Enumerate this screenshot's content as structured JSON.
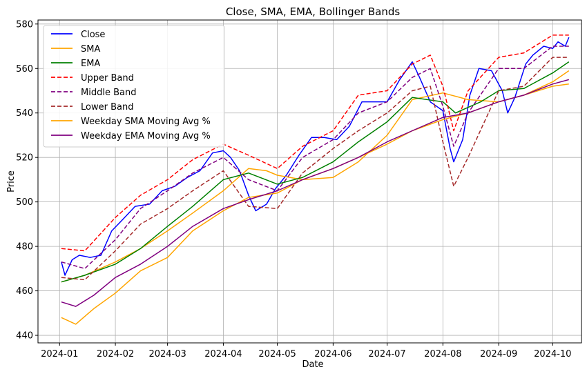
{
  "chart_data": {
    "type": "line",
    "title": "Close, SMA, EMA, Bollinger Bands",
    "xlabel": "Date",
    "ylabel": "Price",
    "x_ticks": [
      "2024-01",
      "2024-02",
      "2024-03",
      "2024-04",
      "2024-05",
      "2024-06",
      "2024-07",
      "2024-08",
      "2024-09",
      "2024-10"
    ],
    "y_ticks": [
      440,
      460,
      480,
      500,
      520,
      540,
      560,
      580
    ],
    "xlim": [
      "2023-12-20",
      "2024-10-17"
    ],
    "ylim": [
      436.6,
      581.8
    ],
    "grid": true,
    "legend_position": "upper-left",
    "series": [
      {
        "name": "Close",
        "color": "#0000ff",
        "style": "solid",
        "points": [
          [
            "2024-01-02",
            473
          ],
          [
            "2024-01-04",
            467
          ],
          [
            "2024-01-08",
            474
          ],
          [
            "2024-01-12",
            476
          ],
          [
            "2024-01-18",
            475
          ],
          [
            "2024-01-24",
            476
          ],
          [
            "2024-01-30",
            487
          ],
          [
            "2024-02-05",
            492
          ],
          [
            "2024-02-12",
            498
          ],
          [
            "2024-02-20",
            499
          ],
          [
            "2024-02-27",
            505
          ],
          [
            "2024-03-05",
            507
          ],
          [
            "2024-03-12",
            511
          ],
          [
            "2024-03-19",
            514
          ],
          [
            "2024-03-26",
            522
          ],
          [
            "2024-04-01",
            523
          ],
          [
            "2024-04-05",
            520
          ],
          [
            "2024-04-10",
            514
          ],
          [
            "2024-04-15",
            503
          ],
          [
            "2024-04-19",
            496
          ],
          [
            "2024-04-25",
            499
          ],
          [
            "2024-04-30",
            506
          ],
          [
            "2024-05-06",
            512
          ],
          [
            "2024-05-13",
            521
          ],
          [
            "2024-05-20",
            529
          ],
          [
            "2024-05-27",
            529
          ],
          [
            "2024-06-03",
            528
          ],
          [
            "2024-06-10",
            534
          ],
          [
            "2024-06-17",
            545
          ],
          [
            "2024-06-24",
            545
          ],
          [
            "2024-07-01",
            545
          ],
          [
            "2024-07-08",
            555
          ],
          [
            "2024-07-15",
            563
          ],
          [
            "2024-07-19",
            556
          ],
          [
            "2024-07-25",
            545
          ],
          [
            "2024-08-01",
            541
          ],
          [
            "2024-08-05",
            524
          ],
          [
            "2024-08-07",
            518
          ],
          [
            "2024-08-12",
            528
          ],
          [
            "2024-08-16",
            548
          ],
          [
            "2024-08-21",
            560
          ],
          [
            "2024-08-28",
            559
          ],
          [
            "2024-09-03",
            550
          ],
          [
            "2024-09-06",
            540
          ],
          [
            "2024-09-10",
            547
          ],
          [
            "2024-09-16",
            562
          ],
          [
            "2024-09-20",
            566
          ],
          [
            "2024-09-26",
            570
          ],
          [
            "2024-10-01",
            569
          ],
          [
            "2024-10-04",
            572
          ],
          [
            "2024-10-08",
            570
          ],
          [
            "2024-10-10",
            574
          ]
        ]
      },
      {
        "name": "SMA",
        "color": "#ffa500",
        "style": "solid",
        "points": [
          [
            "2024-01-02",
            464
          ],
          [
            "2024-01-15",
            467
          ],
          [
            "2024-02-01",
            473
          ],
          [
            "2024-02-15",
            479
          ],
          [
            "2024-03-01",
            487
          ],
          [
            "2024-03-15",
            495
          ],
          [
            "2024-04-01",
            505
          ],
          [
            "2024-04-15",
            515
          ],
          [
            "2024-04-25",
            514
          ],
          [
            "2024-05-01",
            512
          ],
          [
            "2024-05-15",
            510
          ],
          [
            "2024-06-01",
            511
          ],
          [
            "2024-06-15",
            518
          ],
          [
            "2024-07-01",
            530
          ],
          [
            "2024-07-15",
            546
          ],
          [
            "2024-08-01",
            549
          ],
          [
            "2024-08-15",
            546
          ],
          [
            "2024-09-01",
            545
          ],
          [
            "2024-09-15",
            548
          ],
          [
            "2024-10-01",
            554
          ],
          [
            "2024-10-10",
            559
          ]
        ]
      },
      {
        "name": "EMA",
        "color": "#008000",
        "style": "solid",
        "points": [
          [
            "2024-01-02",
            464
          ],
          [
            "2024-01-15",
            467
          ],
          [
            "2024-02-01",
            472
          ],
          [
            "2024-02-15",
            479
          ],
          [
            "2024-03-01",
            489
          ],
          [
            "2024-03-15",
            498
          ],
          [
            "2024-04-01",
            510
          ],
          [
            "2024-04-15",
            513
          ],
          [
            "2024-05-01",
            508
          ],
          [
            "2024-05-15",
            511
          ],
          [
            "2024-06-01",
            518
          ],
          [
            "2024-06-15",
            527
          ],
          [
            "2024-07-01",
            536
          ],
          [
            "2024-07-15",
            547
          ],
          [
            "2024-08-01",
            545
          ],
          [
            "2024-08-08",
            540
          ],
          [
            "2024-08-22",
            545
          ],
          [
            "2024-09-01",
            550
          ],
          [
            "2024-09-15",
            551
          ],
          [
            "2024-10-01",
            558
          ],
          [
            "2024-10-10",
            563
          ]
        ]
      },
      {
        "name": "Upper Band",
        "color": "#ff0000",
        "style": "dashed",
        "points": [
          [
            "2024-01-02",
            479
          ],
          [
            "2024-01-15",
            478
          ],
          [
            "2024-02-01",
            493
          ],
          [
            "2024-02-15",
            503
          ],
          [
            "2024-03-01",
            510
          ],
          [
            "2024-03-15",
            519
          ],
          [
            "2024-04-01",
            526
          ],
          [
            "2024-04-15",
            521
          ],
          [
            "2024-05-01",
            515
          ],
          [
            "2024-05-15",
            525
          ],
          [
            "2024-06-01",
            532
          ],
          [
            "2024-06-15",
            548
          ],
          [
            "2024-07-01",
            550
          ],
          [
            "2024-07-15",
            562
          ],
          [
            "2024-07-25",
            566
          ],
          [
            "2024-08-01",
            552
          ],
          [
            "2024-08-07",
            532
          ],
          [
            "2024-08-15",
            550
          ],
          [
            "2024-09-01",
            565
          ],
          [
            "2024-09-15",
            567
          ],
          [
            "2024-10-01",
            575
          ],
          [
            "2024-10-10",
            575
          ]
        ]
      },
      {
        "name": "Middle Band",
        "color": "#800080",
        "style": "dashed",
        "points": [
          [
            "2024-01-02",
            473
          ],
          [
            "2024-01-15",
            470
          ],
          [
            "2024-02-01",
            483
          ],
          [
            "2024-02-15",
            497
          ],
          [
            "2024-03-01",
            505
          ],
          [
            "2024-03-15",
            513
          ],
          [
            "2024-04-01",
            520
          ],
          [
            "2024-04-15",
            510
          ],
          [
            "2024-05-01",
            505
          ],
          [
            "2024-05-15",
            520
          ],
          [
            "2024-06-01",
            528
          ],
          [
            "2024-06-15",
            540
          ],
          [
            "2024-07-01",
            545
          ],
          [
            "2024-07-15",
            556
          ],
          [
            "2024-07-25",
            560
          ],
          [
            "2024-08-01",
            543
          ],
          [
            "2024-08-07",
            525
          ],
          [
            "2024-08-15",
            540
          ],
          [
            "2024-09-01",
            560
          ],
          [
            "2024-09-15",
            560
          ],
          [
            "2024-10-01",
            570
          ],
          [
            "2024-10-10",
            570
          ]
        ]
      },
      {
        "name": "Lower Band",
        "color": "#a52a2a",
        "style": "dashed",
        "points": [
          [
            "2024-01-02",
            466
          ],
          [
            "2024-01-15",
            465
          ],
          [
            "2024-02-01",
            478
          ],
          [
            "2024-02-15",
            490
          ],
          [
            "2024-03-01",
            497
          ],
          [
            "2024-03-15",
            505
          ],
          [
            "2024-04-01",
            514
          ],
          [
            "2024-04-15",
            498
          ],
          [
            "2024-05-01",
            497
          ],
          [
            "2024-05-15",
            513
          ],
          [
            "2024-06-01",
            524
          ],
          [
            "2024-06-15",
            532
          ],
          [
            "2024-07-01",
            540
          ],
          [
            "2024-07-15",
            550
          ],
          [
            "2024-07-25",
            552
          ],
          [
            "2024-08-01",
            527
          ],
          [
            "2024-08-07",
            507
          ],
          [
            "2024-08-15",
            520
          ],
          [
            "2024-09-01",
            550
          ],
          [
            "2024-09-15",
            552
          ],
          [
            "2024-10-01",
            565
          ],
          [
            "2024-10-10",
            565
          ]
        ]
      },
      {
        "name": "Weekday SMA Moving Avg %",
        "color": "#ffa500",
        "style": "solid",
        "points": [
          [
            "2024-01-02",
            448
          ],
          [
            "2024-01-10",
            445
          ],
          [
            "2024-01-20",
            452
          ],
          [
            "2024-02-01",
            459
          ],
          [
            "2024-02-15",
            469
          ],
          [
            "2024-03-01",
            475
          ],
          [
            "2024-03-15",
            487
          ],
          [
            "2024-04-01",
            496
          ],
          [
            "2024-04-15",
            502
          ],
          [
            "2024-05-01",
            504
          ],
          [
            "2024-05-15",
            510
          ],
          [
            "2024-06-01",
            515
          ],
          [
            "2024-06-15",
            520
          ],
          [
            "2024-07-01",
            526
          ],
          [
            "2024-07-15",
            532
          ],
          [
            "2024-08-01",
            537
          ],
          [
            "2024-08-15",
            540
          ],
          [
            "2024-09-01",
            545
          ],
          [
            "2024-09-15",
            548
          ],
          [
            "2024-10-01",
            552
          ],
          [
            "2024-10-10",
            553
          ]
        ]
      },
      {
        "name": "Weekday EMA Moving Avg %",
        "color": "#800080",
        "style": "solid",
        "points": [
          [
            "2024-01-02",
            455
          ],
          [
            "2024-01-10",
            453
          ],
          [
            "2024-01-20",
            458
          ],
          [
            "2024-02-01",
            466
          ],
          [
            "2024-02-15",
            472
          ],
          [
            "2024-03-01",
            480
          ],
          [
            "2024-03-15",
            489
          ],
          [
            "2024-04-01",
            497
          ],
          [
            "2024-04-15",
            501
          ],
          [
            "2024-05-01",
            505
          ],
          [
            "2024-05-15",
            510
          ],
          [
            "2024-06-01",
            515
          ],
          [
            "2024-06-15",
            520
          ],
          [
            "2024-07-01",
            527
          ],
          [
            "2024-07-15",
            532
          ],
          [
            "2024-08-01",
            538
          ],
          [
            "2024-08-15",
            540
          ],
          [
            "2024-09-01",
            545
          ],
          [
            "2024-09-15",
            548
          ],
          [
            "2024-10-01",
            553
          ],
          [
            "2024-10-10",
            555
          ]
        ]
      }
    ]
  }
}
